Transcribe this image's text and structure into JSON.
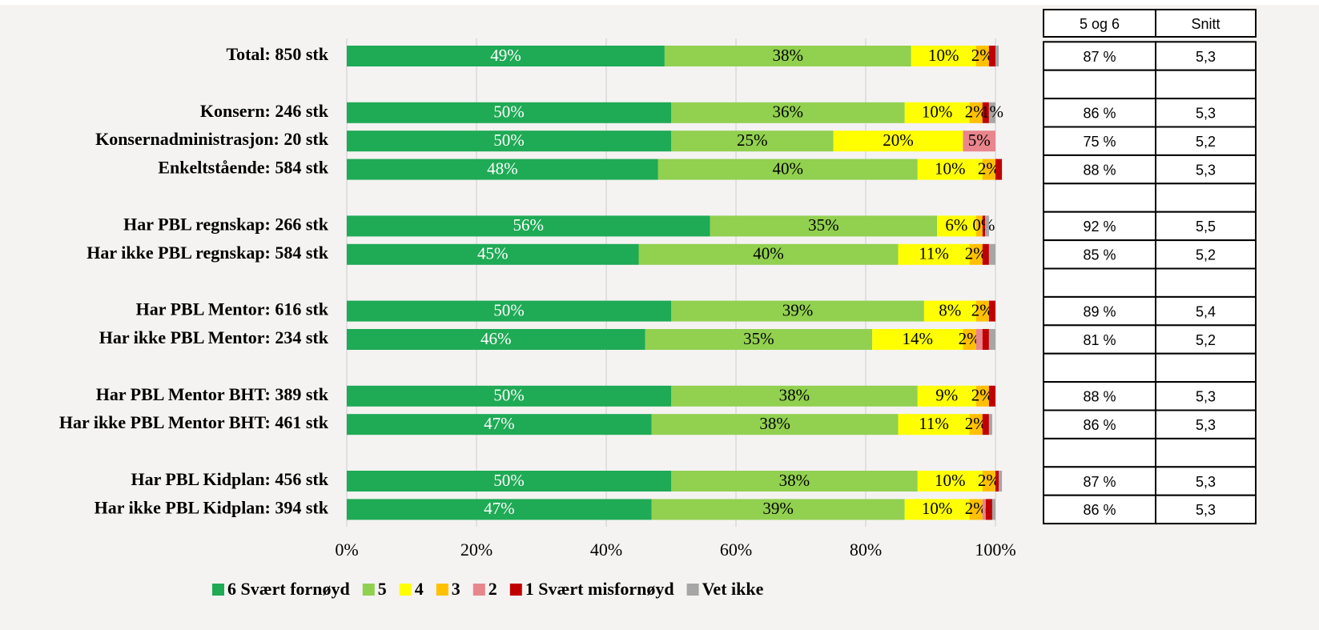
{
  "chart_data": {
    "type": "stacked-barh",
    "categories": [
      "Total: 850 stk",
      null,
      "Konsern: 246 stk",
      "Konsernadministrasjon: 20 stk",
      "Enkeltstående: 584 stk",
      null,
      "Har PBL regnskap: 266 stk",
      "Har ikke PBL regnskap: 584 stk",
      null,
      "Har PBL Mentor: 616 stk",
      "Har ikke PBL Mentor: 234 stk",
      null,
      "Har PBL Mentor BHT: 389 stk",
      "Har ikke PBL Mentor BHT: 461 stk",
      null,
      "Har PBL Kidplan: 456 stk",
      "Har ikke PBL Kidplan: 394 stk"
    ],
    "series": [
      {
        "name": "6 Svært fornøyd",
        "color": "#1faa55",
        "values": [
          49,
          null,
          50,
          50,
          48,
          null,
          56,
          45,
          null,
          50,
          46,
          null,
          50,
          47,
          null,
          50,
          47
        ],
        "value_labels": [
          "49%",
          null,
          "50%",
          "50%",
          "48%",
          null,
          "56%",
          "45%",
          null,
          "50%",
          "46%",
          null,
          "50%",
          "47%",
          null,
          "50%",
          "47%"
        ]
      },
      {
        "name": "5",
        "color": "#92d050",
        "values": [
          38,
          null,
          36,
          25,
          40,
          null,
          35,
          40,
          null,
          39,
          35,
          null,
          38,
          38,
          null,
          38,
          39
        ],
        "value_labels": [
          "38%",
          null,
          "36%",
          "25%",
          "40%",
          null,
          "35%",
          "40%",
          null,
          "39%",
          "35%",
          null,
          "38%",
          "38%",
          null,
          "38%",
          "39%"
        ]
      },
      {
        "name": "4",
        "color": "#ffff00",
        "values": [
          10,
          null,
          10,
          20,
          10,
          null,
          6,
          11,
          null,
          8,
          14,
          null,
          9,
          11,
          null,
          10,
          10
        ],
        "value_labels": [
          "10%",
          null,
          "10%",
          "20%",
          "10%",
          null,
          "6%",
          "11%",
          null,
          "8%",
          "14%",
          null,
          "9%",
          "11%",
          null,
          "10%",
          "10%"
        ]
      },
      {
        "name": "3",
        "color": "#ffc000",
        "values": [
          2,
          null,
          2,
          0,
          2,
          null,
          1,
          2,
          null,
          2,
          2,
          null,
          2,
          2,
          null,
          2,
          2
        ],
        "value_labels": [
          "2%",
          null,
          "2%",
          null,
          "2%",
          null,
          null,
          "2%",
          null,
          "2%",
          "2%",
          null,
          "2%",
          "2%",
          null,
          "2%",
          "2%"
        ]
      },
      {
        "name": "2",
        "color": "#e9858c",
        "values": [
          0,
          null,
          0,
          5,
          0,
          null,
          0,
          0,
          null,
          0,
          1,
          null,
          0,
          0,
          null,
          0,
          0.5
        ],
        "value_labels": [
          null,
          null,
          null,
          "5%",
          null,
          null,
          null,
          null,
          null,
          null,
          null,
          null,
          null,
          null,
          null,
          null,
          null
        ]
      },
      {
        "name": "1 Svært misfornøyd",
        "color": "#c00000",
        "values": [
          1,
          null,
          1,
          0,
          1,
          null,
          0.4,
          1,
          null,
          1,
          1,
          null,
          1,
          1,
          null,
          0.5,
          1
        ],
        "value_labels": [
          null,
          null,
          null,
          null,
          null,
          null,
          "0%",
          null,
          null,
          null,
          null,
          null,
          null,
          null,
          null,
          null,
          null
        ]
      },
      {
        "name": "Vet ikke",
        "color": "#a6a6a6",
        "values": [
          0.5,
          null,
          1,
          0,
          0,
          null,
          0.6,
          1,
          null,
          0,
          1,
          null,
          0,
          0.5,
          null,
          0.5,
          0.5
        ],
        "value_labels": [
          null,
          null,
          "1%",
          null,
          null,
          null,
          null,
          null,
          null,
          null,
          null,
          null,
          null,
          null,
          null,
          null,
          null
        ]
      }
    ],
    "xlim": [
      0,
      100
    ],
    "xticks": [
      {
        "value": 0,
        "label": "0%"
      },
      {
        "value": 20,
        "label": "20%"
      },
      {
        "value": 40,
        "label": "40%"
      },
      {
        "value": 60,
        "label": "60%"
      },
      {
        "value": 80,
        "label": "80%"
      },
      {
        "value": 100,
        "label": "100%"
      }
    ],
    "grid": true,
    "legend": "bottom"
  },
  "table": {
    "header": [
      "5 og 6",
      "Snitt"
    ],
    "rows": [
      [
        "87 %",
        "5,3"
      ],
      null,
      [
        "86 %",
        "5,3"
      ],
      [
        "75 %",
        "5,2"
      ],
      [
        "88 %",
        "5,3"
      ],
      null,
      [
        "92 %",
        "5,5"
      ],
      [
        "85 %",
        "5,2"
      ],
      null,
      [
        "89 %",
        "5,4"
      ],
      [
        "81 %",
        "5,2"
      ],
      null,
      [
        "88 %",
        "5,3"
      ],
      [
        "86 %",
        "5,3"
      ],
      null,
      [
        "87 %",
        "5,3"
      ],
      [
        "86 %",
        "5,3"
      ]
    ]
  }
}
